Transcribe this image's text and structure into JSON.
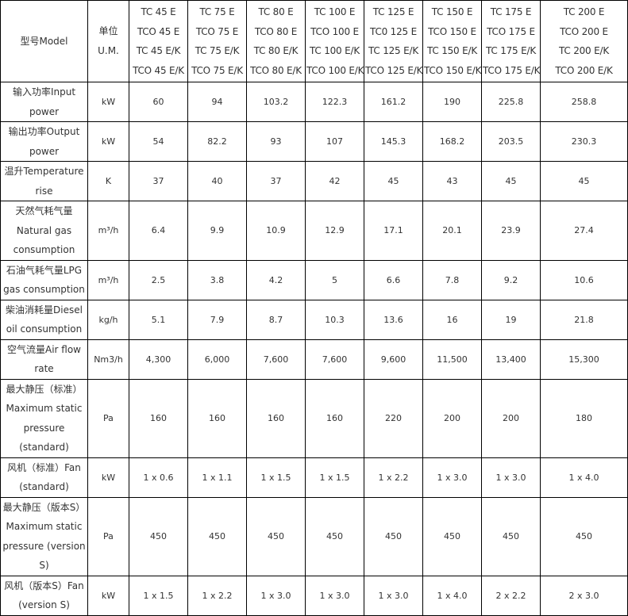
{
  "header": {
    "model_label": "型号Model",
    "unit_label_cn": "单位",
    "unit_label_en": "U.M.",
    "models": [
      [
        "TC 45 E",
        "TCO 45 E",
        "TC 45 E/K",
        "TCO 45 E/K"
      ],
      [
        "TC 75 E",
        "TCO 75 E",
        "TC 75 E/K",
        "TCO 75 E/K"
      ],
      [
        "TC 80 E",
        "TCO 80 E",
        "TC 80 E/K",
        "TCO 80 E/K"
      ],
      [
        "TC 100 E",
        "TCO 100 E",
        "TC 100 E/K",
        "TCO 100 E/K"
      ],
      [
        "TC 125 E",
        "TC0 125 E",
        "TC 125 E/K",
        "TCO 125 E/K"
      ],
      [
        "TC 150 E",
        "TCO 150 E",
        "TC 150 E/K",
        "TCO 150 E/K"
      ],
      [
        "TC 175 E",
        "TCO 175 E",
        "TC 175 E/K",
        "TCO 175 E/K"
      ],
      [
        "TC 200 E",
        "TCO 200 E",
        "TC 200 E/K",
        "TCO 200 E/K"
      ]
    ]
  },
  "rows": [
    {
      "label": "输入功率Input power",
      "unit": "kW",
      "values": [
        "60",
        "94",
        "103.2",
        "122.3",
        "161.2",
        "190",
        "225.8",
        "258.8"
      ]
    },
    {
      "label": "输出功率Output power",
      "unit": "kW",
      "values": [
        "54",
        "82.2",
        "93",
        "107",
        "145.3",
        "168.2",
        "203.5",
        "230.3"
      ]
    },
    {
      "label": "温升Temperature rise",
      "unit": "K",
      "values": [
        "37",
        "40",
        "37",
        "42",
        "45",
        "43",
        "45",
        "45"
      ]
    },
    {
      "label": "天然气耗气量 Natural gas consumption",
      "unit": "m³/h",
      "values": [
        "6.4",
        "9.9",
        "10.9",
        "12.9",
        "17.1",
        "20.1",
        "23.9",
        "27.4"
      ]
    },
    {
      "label": "石油气耗气量LPG gas consumption",
      "unit": "m³/h",
      "values": [
        "2.5",
        "3.8",
        "4.2",
        "5",
        "6.6",
        "7.8",
        "9.2",
        "10.6"
      ]
    },
    {
      "label": "柴油消耗量Diesel oil consumption",
      "unit": "kg/h",
      "values": [
        "5.1",
        "7.9",
        "8.7",
        "10.3",
        "13.6",
        "16",
        "19",
        "21.8"
      ]
    },
    {
      "label": "空气流量Air flow rate",
      "unit": "Nm3/h",
      "values": [
        "4,300",
        "6,000",
        "7,600",
        "7,600",
        "9,600",
        "11,500",
        "13,400",
        "15,300"
      ]
    },
    {
      "label": "最大静压（标准） Maximum static pressure (standard)",
      "unit": "Pa",
      "values": [
        "160",
        "160",
        "160",
        "160",
        "220",
        "200",
        "200",
        "180"
      ]
    },
    {
      "label": "风机（标准）Fan (standard)",
      "unit": "kW",
      "values": [
        "1 x 0.6",
        "1 x 1.1",
        "1 x 1.5",
        "1 x 1.5",
        "1 x 2.2",
        "1 x 3.0",
        "1 x 3.0",
        "1 x 4.0"
      ]
    },
    {
      "label": "最大静压（版本S） Maximum static pressure (version S)",
      "unit": "Pa",
      "values": [
        "450",
        "450",
        "450",
        "450",
        "450",
        "450",
        "450",
        "450"
      ]
    },
    {
      "label": "风机（版本S）Fan (version S)",
      "unit": "kW",
      "values": [
        "1 x 1.5",
        "1 x 2.2",
        "1 x 3.0",
        "1 x 3.0",
        "1 x 3.0",
        "1 x 4.0",
        "2 x 2.2",
        "2 x 3.0"
      ]
    }
  ]
}
